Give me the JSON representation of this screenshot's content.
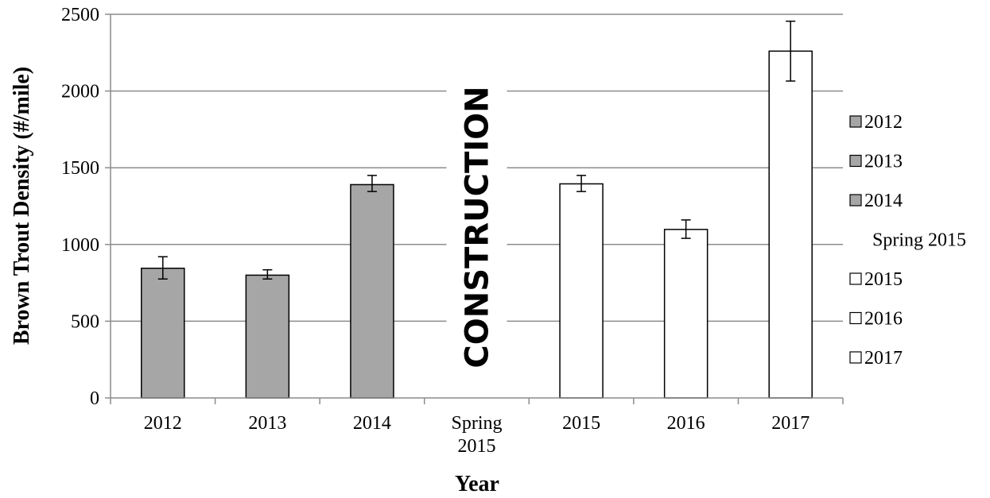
{
  "chart_data": {
    "type": "bar",
    "categories": [
      "2012",
      "2013",
      "2014",
      "Spring 2015",
      "2015",
      "2016",
      "2017"
    ],
    "category_lines": [
      [
        "2012"
      ],
      [
        "2013"
      ],
      [
        "2014"
      ],
      [
        "Spring",
        "2015"
      ],
      [
        "2015"
      ],
      [
        "2016"
      ],
      [
        "2017"
      ]
    ],
    "values": [
      845,
      800,
      1390,
      null,
      1395,
      1098,
      2260
    ],
    "error_low": [
      775,
      775,
      1345,
      null,
      1345,
      1040,
      2065
    ],
    "error_high": [
      920,
      835,
      1450,
      null,
      1450,
      1160,
      2455
    ],
    "bar_colors": [
      "#a6a6a6",
      "#a6a6a6",
      "#a6a6a6",
      null,
      "#ffffff",
      "#ffffff",
      "#ffffff"
    ],
    "xlabel": "Year",
    "ylabel": "Brown Trout Density (#/mile)",
    "ylim": [
      0,
      2500
    ],
    "yticks": [
      "0",
      "500",
      "1000",
      "1500",
      "2000",
      "2500"
    ],
    "grid": true,
    "legend_position": "right",
    "legend": [
      {
        "label": "2012",
        "color": "#a6a6a6"
      },
      {
        "label": "2013",
        "color": "#a6a6a6"
      },
      {
        "label": "2014",
        "color": "#a6a6a6"
      },
      {
        "label": "Spring 2015",
        "color": null
      },
      {
        "label": "2015",
        "color": "#ffffff"
      },
      {
        "label": "2016",
        "color": "#ffffff"
      },
      {
        "label": "2017",
        "color": "#ffffff"
      }
    ],
    "annotation": "CONSTRUCTION"
  }
}
